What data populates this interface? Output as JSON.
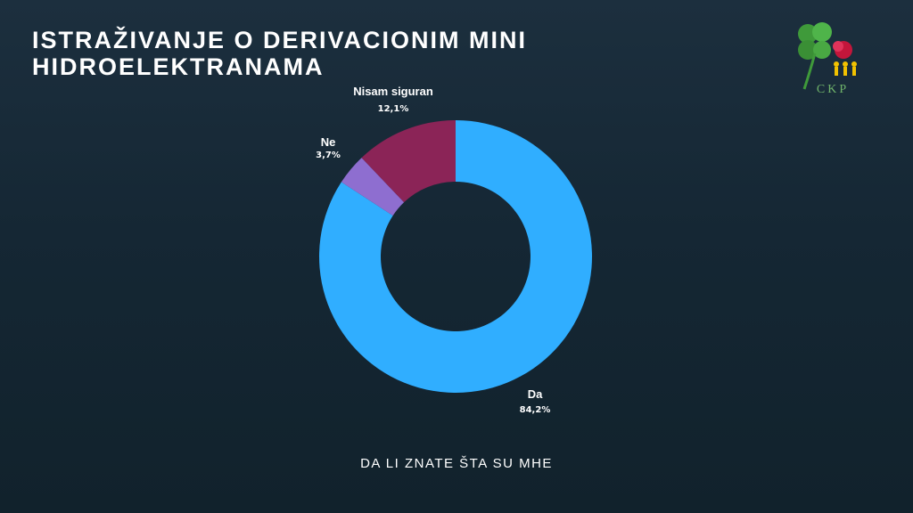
{
  "slide": {
    "title": "ISTRAŽIVANJE O DERIVACIONIM MINI HIDROELEKTRANAMA",
    "logo_text": "CKP"
  },
  "chart_data": {
    "type": "pie",
    "subtype": "donut",
    "title": "DA LI ZNATE ŠTA SU MHE",
    "slices": [
      {
        "label": "Da",
        "value": 84.2,
        "value_label": "84,2%",
        "color": "#30aeff"
      },
      {
        "label": "Ne",
        "value": 3.7,
        "value_label": "3,7%",
        "color": "#8e6ed0"
      },
      {
        "label": "Nisam siguran",
        "value": 12.1,
        "value_label": "12,1%",
        "color": "#8b2457"
      }
    ],
    "legend": "none"
  }
}
